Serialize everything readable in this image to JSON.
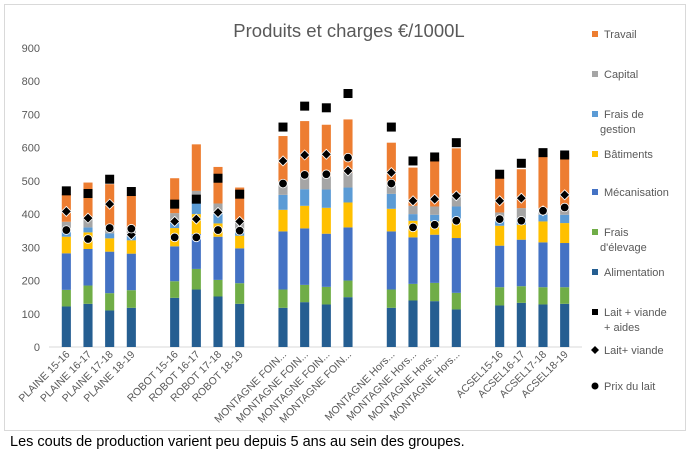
{
  "caption": "Les couts de production varient peu depuis 5 ans au sein des groupes.",
  "chart_data": {
    "type": "bar",
    "stacked": true,
    "title": "Produits et charges €/1000L",
    "xlabel": "",
    "ylabel": "",
    "ylim": [
      0,
      900
    ],
    "yticks": [
      0,
      100,
      200,
      300,
      400,
      500,
      600,
      700,
      800,
      900
    ],
    "grid": false,
    "legend_position": "right",
    "categories": [
      "PLAINE 15-16",
      "PLAINE 16-17",
      "PLAINE 17-18",
      "PLAINE   18-19",
      "ROBOT 15-16",
      "ROBOT 16-17",
      "ROBOT 17-18",
      "ROBOT 18-19",
      "MONTAGNE FOIN...",
      "MONTAGNE FOIN...",
      "MONTAGNE FOIN...",
      "MONTAGNE FOIN...",
      "MONTAGNE Hors...",
      "MONTAGNE Hors...",
      "MONTAGNE Hors...",
      "MONTAGNE Hors...",
      "ACSEL15-16",
      "ACSEL16-17",
      "ACSEL17-18",
      "ACSEL18-19"
    ],
    "groups": [
      [
        0,
        1,
        2,
        3
      ],
      [
        4,
        5,
        6,
        7
      ],
      [
        8,
        9,
        10,
        11
      ],
      [
        12,
        13,
        14,
        15
      ],
      [
        16,
        17,
        18,
        19
      ]
    ],
    "series": [
      {
        "name": "Alimentation",
        "color": "#255e91",
        "values": [
          122,
          130,
          110,
          118,
          148,
          173,
          152,
          130,
          118,
          135,
          128,
          150,
          118,
          140,
          138,
          113,
          125,
          133,
          128,
          130
        ]
      },
      {
        "name": "Frais d'élevage",
        "color": "#70ad47",
        "values": [
          50,
          55,
          52,
          53,
          50,
          62,
          50,
          62,
          55,
          52,
          53,
          50,
          55,
          50,
          55,
          50,
          55,
          50,
          52,
          50
        ]
      },
      {
        "name": "Mécanisation",
        "color": "#4472c4",
        "values": [
          110,
          110,
          125,
          110,
          105,
          105,
          130,
          105,
          175,
          170,
          160,
          160,
          175,
          140,
          145,
          165,
          125,
          140,
          135,
          133
        ]
      },
      {
        "name": "Bâtiments",
        "color": "#ffc000",
        "values": [
          50,
          50,
          40,
          40,
          55,
          60,
          40,
          38,
          65,
          68,
          78,
          75,
          68,
          50,
          40,
          55,
          60,
          45,
          63,
          60
        ]
      },
      {
        "name": "Frais de gestion",
        "color": "#5b9bd5",
        "values": [
          20,
          15,
          15,
          15,
          20,
          40,
          30,
          20,
          45,
          50,
          55,
          45,
          45,
          20,
          20,
          40,
          20,
          20,
          20,
          25
        ]
      },
      {
        "name": "Capital",
        "color": "#a5a5a5",
        "values": [
          25,
          25,
          25,
          20,
          25,
          30,
          30,
          20,
          40,
          40,
          40,
          45,
          30,
          25,
          25,
          40,
          20,
          30,
          20,
          25
        ]
      },
      {
        "name": "Travail",
        "color": "#ed7d31",
        "values": [
          83,
          110,
          123,
          100,
          105,
          140,
          110,
          105,
          137,
          165,
          155,
          160,
          124,
          115,
          145,
          135,
          105,
          117,
          162,
          160
        ]
      }
    ],
    "markers": [
      {
        "name": "Lait + viande + aides",
        "symbol": "square",
        "values": [
          470,
          462,
          505,
          468,
          430,
          445,
          508,
          460,
          662,
          725,
          720,
          763,
          662,
          560,
          572,
          615,
          520,
          553,
          585,
          578
        ]
      },
      {
        "name": "Lait+ viande",
        "symbol": "diamond",
        "values": [
          408,
          388,
          430,
          338,
          378,
          385,
          405,
          378,
          560,
          578,
          580,
          530,
          525,
          440,
          445,
          455,
          440,
          448,
          410,
          458
        ]
      },
      {
        "name": "Prix du lait",
        "symbol": "circle",
        "values": [
          352,
          325,
          358,
          356,
          330,
          330,
          352,
          350,
          492,
          518,
          520,
          570,
          492,
          360,
          368,
          380,
          385,
          380,
          410,
          420
        ]
      }
    ]
  }
}
